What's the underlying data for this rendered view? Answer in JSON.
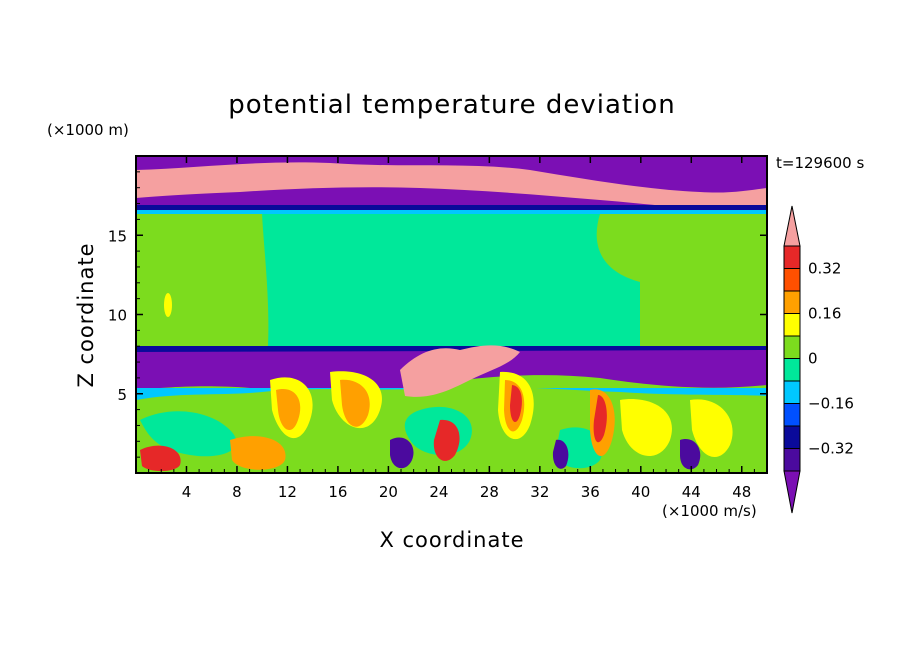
{
  "chart_data": {
    "type": "heatmap",
    "title": "potential temperature deviation",
    "xlabel": "X coordinate",
    "ylabel": "Z coordinate",
    "x_unit": "(×1000 m/s)",
    "y_unit": "(×1000 m)",
    "time_label": "t=129600 s",
    "xlim": [
      0,
      50
    ],
    "ylim": [
      0,
      20
    ],
    "xticks": [
      4,
      8,
      12,
      16,
      20,
      24,
      28,
      32,
      36,
      40,
      44,
      48
    ],
    "yticks": [
      5,
      10,
      15
    ],
    "colorbar": {
      "levels": [
        -0.4,
        -0.32,
        -0.24,
        -0.16,
        -0.08,
        0,
        0.08,
        0.16,
        0.24,
        0.32,
        0.4
      ],
      "tick_labels": [
        "0.32",
        "0.16",
        "0",
        "−0.16",
        "−0.32"
      ],
      "tick_values": [
        0.32,
        0.16,
        0,
        -0.16,
        -0.32
      ],
      "colors": [
        "#7b0fb4",
        "#4b0a9e",
        "#0a0a9a",
        "#0050ff",
        "#00c8ff",
        "#00e89a",
        "#7cdc1e",
        "#ffff00",
        "#ffa000",
        "#ff5000",
        "#e62828",
        "#f5a0a0"
      ],
      "extend": "both"
    },
    "layers": [
      {
        "z_range": [
          17.0,
          20.0
        ],
        "value": -0.5,
        "note_color": "#7b0fb4"
      },
      {
        "z_range": [
          16.0,
          18.5
        ],
        "value": 0.45,
        "note_color": "#f5a0a0"
      },
      {
        "z_range": [
          8.0,
          16.0
        ],
        "value": 0.04,
        "note_color": "#00e89a"
      },
      {
        "z_range": [
          5.5,
          8.0
        ],
        "value": -0.45,
        "note_color": "#7b0fb4"
      },
      {
        "z_range": [
          0,
          5.5
        ],
        "value": 0.1,
        "note_color": "#7cdc1e"
      }
    ]
  }
}
